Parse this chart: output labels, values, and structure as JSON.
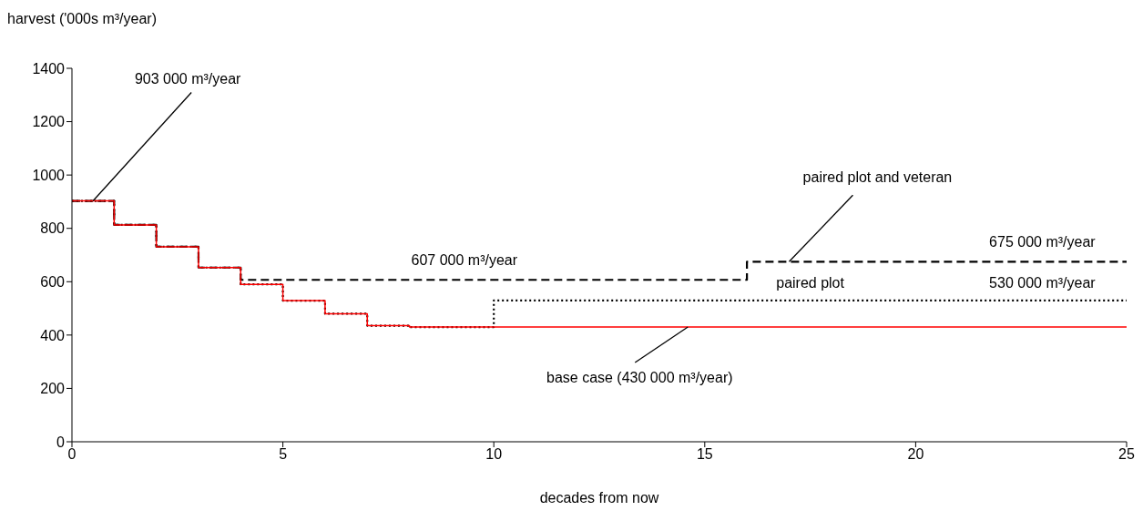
{
  "chart_data": {
    "type": "step",
    "xlabel": "decades from now",
    "ylabel": "harvest ('000s m³/year)",
    "xlim": [
      0,
      25
    ],
    "xticks": [
      0,
      5,
      10,
      15,
      20,
      25
    ],
    "ylim": [
      0,
      1400
    ],
    "yticks": [
      0,
      200,
      400,
      600,
      800,
      1000,
      1200,
      1400
    ],
    "grid": false,
    "legend": false,
    "marker": "none",
    "series": [
      {
        "color": "#000000",
        "line_style": "dashed",
        "x": [
          0,
          1,
          2,
          3,
          4,
          16,
          25
        ],
        "values": [
          903,
          813,
          731,
          653,
          607,
          675,
          675
        ]
      },
      {
        "color": "#000000",
        "line_style": "dotted",
        "x": [
          0,
          1,
          2,
          3,
          4,
          5,
          6,
          7,
          8,
          10,
          25
        ],
        "values": [
          903,
          813,
          731,
          653,
          590,
          529,
          480,
          435,
          430,
          530,
          530
        ]
      },
      {
        "color": "#ff0000",
        "line_style": "solid",
        "x": [
          0,
          1,
          2,
          3,
          4,
          5,
          6,
          7,
          8,
          25
        ],
        "values": [
          903,
          813,
          731,
          653,
          590,
          529,
          480,
          435,
          430,
          430
        ]
      }
    ],
    "annotations": [
      {
        "text": "903 000 m³/year",
        "x": 0.5,
        "y": 903
      },
      {
        "text": "607 000 m³/year",
        "x": 9.3,
        "y": 607
      },
      {
        "text": "paired plot and veteran",
        "x": 17,
        "y": 675
      },
      {
        "text": "675 000 m³/year",
        "x": 23,
        "y": 675
      },
      {
        "text": "paired plot",
        "x": 17.5,
        "y": 530
      },
      {
        "text": "530 000 m³/year",
        "x": 23,
        "y": 530
      },
      {
        "text": "base case (430 000 m³/year)",
        "x": 14.6,
        "y": 430
      }
    ]
  }
}
